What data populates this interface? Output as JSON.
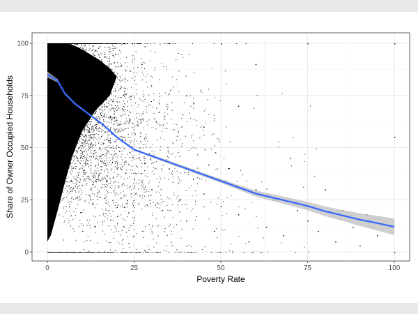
{
  "chart_data": {
    "type": "scatter",
    "title": "",
    "xlabel": "Poverty Rate",
    "ylabel": "Share of Owner Occupied Households",
    "xlim": [
      0,
      100
    ],
    "ylim": [
      0,
      100
    ],
    "x_ticks": [
      0,
      25,
      50,
      75,
      100
    ],
    "y_ticks": [
      0,
      25,
      50,
      75,
      100
    ],
    "grid": true,
    "legend": "none",
    "point_color": "#000000",
    "series": [
      {
        "kind": "points",
        "description_density": "very dense cloud concentrated at low poverty rate and high ownership, thinning toward high poverty rate",
        "sample_points": [
          [
            1,
            98
          ],
          [
            2,
            90
          ],
          [
            3,
            85
          ],
          [
            5,
            95
          ],
          [
            6,
            70
          ],
          [
            8,
            80
          ],
          [
            10,
            60
          ],
          [
            12,
            75
          ],
          [
            15,
            50
          ],
          [
            18,
            65
          ],
          [
            20,
            40
          ],
          [
            22,
            55
          ],
          [
            25,
            35
          ],
          [
            28,
            45
          ],
          [
            30,
            30
          ],
          [
            33,
            20
          ],
          [
            35,
            40
          ],
          [
            38,
            25
          ],
          [
            40,
            15
          ],
          [
            42,
            35
          ],
          [
            45,
            28
          ],
          [
            48,
            10
          ],
          [
            50,
            22
          ],
          [
            52,
            40
          ],
          [
            55,
            18
          ],
          [
            58,
            5
          ],
          [
            60,
            30
          ],
          [
            63,
            12
          ],
          [
            65,
            25
          ],
          [
            68,
            8
          ],
          [
            70,
            45
          ],
          [
            72,
            20
          ],
          [
            75,
            15
          ],
          [
            78,
            10
          ],
          [
            80,
            30
          ],
          [
            83,
            5
          ],
          [
            85,
            20
          ],
          [
            88,
            12
          ],
          [
            90,
            3
          ],
          [
            92,
            18
          ],
          [
            95,
            8
          ],
          [
            100,
            55
          ],
          [
            100,
            100
          ],
          [
            100,
            0
          ],
          [
            60,
            90
          ],
          [
            55,
            70
          ],
          [
            45,
            60
          ],
          [
            40,
            75
          ],
          [
            50,
            100
          ],
          [
            75,
            100
          ]
        ]
      },
      {
        "kind": "smooth",
        "line_color": "#3366ff",
        "band_color": "#bdbdbd",
        "x": [
          0,
          1,
          3,
          5,
          8,
          12,
          16,
          20,
          25,
          30,
          35,
          40,
          45,
          50,
          55,
          60,
          65,
          70,
          75,
          80,
          85,
          90,
          95,
          100
        ],
        "y": [
          85,
          84,
          82,
          76,
          71,
          66,
          61,
          55,
          49,
          46,
          43,
          40,
          37,
          34,
          31,
          28,
          26,
          24,
          22,
          19.5,
          17.5,
          15.5,
          13.8,
          12
        ],
        "band_halfwidth": [
          1.5,
          1.2,
          0.8,
          0.6,
          0.5,
          0.5,
          0.5,
          0.5,
          0.5,
          0.6,
          0.7,
          0.8,
          0.9,
          1.0,
          1.2,
          1.4,
          1.6,
          1.8,
          2.0,
          2.3,
          2.6,
          3.0,
          3.5,
          4.0
        ]
      }
    ]
  }
}
